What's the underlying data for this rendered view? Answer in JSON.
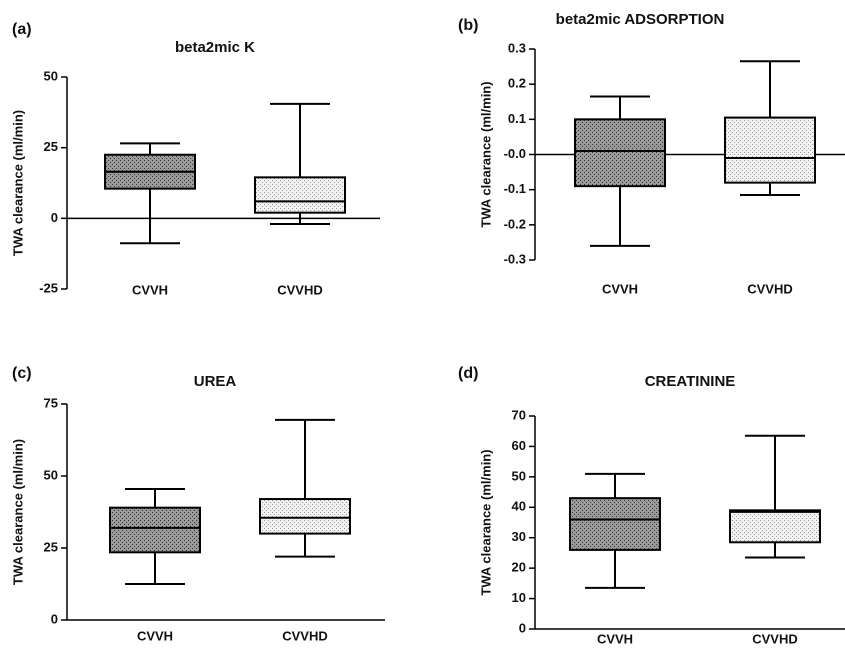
{
  "chart_data": [
    {
      "type": "box",
      "panel_label": "(a)",
      "title": "beta2mic K",
      "y_label": "TWA clearance (ml/min)",
      "categories": [
        "CVVH",
        "CVVHD"
      ],
      "colors": [
        "#9a9a9a",
        "#f2f2f2"
      ],
      "boxes": [
        {
          "whislo": -8.8,
          "q1": 10.5,
          "med": 16.5,
          "q3": 22.5,
          "whishi": 26.5
        },
        {
          "whislo": -2,
          "q1": 2,
          "med": 6,
          "q3": 14.5,
          "whishi": 40.5
        }
      ],
      "ylim": [
        -25,
        50
      ],
      "yticks": [
        -25,
        0,
        25,
        50
      ]
    },
    {
      "type": "box",
      "panel_label": "(b)",
      "title": "beta2mic ADSORPTION",
      "y_label": "TWA clearance (ml/min)",
      "categories": [
        "CVVH",
        "CVVHD"
      ],
      "colors": [
        "#9a9a9a",
        "#f2f2f2"
      ],
      "boxes": [
        {
          "whislo": -0.26,
          "q1": -0.09,
          "med": 0.01,
          "q3": 0.1,
          "whishi": 0.165
        },
        {
          "whislo": -0.115,
          "q1": -0.08,
          "med": -0.01,
          "q3": 0.105,
          "whishi": 0.265
        }
      ],
      "ylim": [
        -0.3,
        0.3
      ],
      "yticks": [
        -0.3,
        -0.2,
        -0.1,
        {
          "value": 0,
          "label": "-0.0"
        },
        0.1,
        0.2,
        0.3
      ]
    },
    {
      "type": "box",
      "panel_label": "(c)",
      "title": "UREA",
      "y_label": "TWA clearance (ml/min)",
      "categories": [
        "CVVH",
        "CVVHD"
      ],
      "colors": [
        "#9a9a9a",
        "#f2f2f2"
      ],
      "boxes": [
        {
          "whislo": 12.5,
          "q1": 23.5,
          "med": 32,
          "q3": 39,
          "whishi": 45.5
        },
        {
          "whislo": 22,
          "q1": 30,
          "med": 35.5,
          "q3": 42,
          "whishi": 69.5
        }
      ],
      "ylim": [
        0,
        75
      ],
      "yticks": [
        0,
        25,
        50,
        75
      ]
    },
    {
      "type": "box",
      "panel_label": "(d)",
      "title": "CREATININE",
      "y_label": "TWA clearance (ml/min)",
      "categories": [
        "CVVH",
        "CVVHD"
      ],
      "colors": [
        "#9a9a9a",
        "#f2f2f2"
      ],
      "boxes": [
        {
          "whislo": 13.5,
          "q1": 26,
          "med": 36,
          "q3": 43,
          "whishi": 51
        },
        {
          "whislo": 23.5,
          "q1": 28.5,
          "med": 38.5,
          "q3": 39,
          "whishi": 63.5
        }
      ],
      "ylim": [
        0,
        70
      ],
      "yticks": [
        0,
        10,
        20,
        30,
        40,
        50,
        60,
        70
      ]
    }
  ]
}
